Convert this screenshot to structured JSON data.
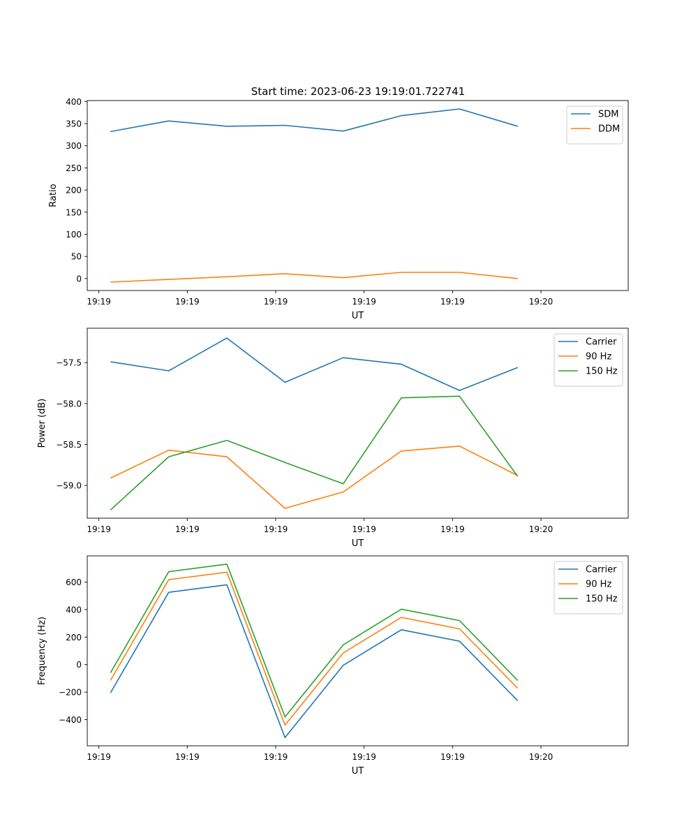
{
  "figure": {
    "title": "Start time: 2023-06-23 19:19:01.722741"
  },
  "chart_data": [
    {
      "type": "line",
      "title": "",
      "xlabel": "UT",
      "ylabel": "Ratio",
      "x": [
        1,
        2,
        3,
        4,
        5,
        6,
        7,
        8
      ],
      "x_ticks": [
        0.8,
        2.32,
        3.84,
        5.36,
        6.88,
        8.4
      ],
      "x_tick_labels": [
        "19:19",
        "19:19",
        "19:19",
        "19:19",
        "19:19",
        "19:20"
      ],
      "xlim": [
        0.6,
        9.9
      ],
      "ylim": [
        -27,
        402
      ],
      "y_ticks": [
        0,
        50,
        100,
        150,
        200,
        250,
        300,
        350,
        400
      ],
      "y_tick_labels": [
        "0",
        "50",
        "100",
        "150",
        "200",
        "250",
        "300",
        "350",
        "400"
      ],
      "grid": false,
      "legend_position": "top-right",
      "series": [
        {
          "name": "SDM",
          "color": "#1f77b4",
          "values": [
            332,
            356,
            344,
            346,
            333,
            368,
            383,
            344
          ]
        },
        {
          "name": "DDM",
          "color": "#ff7f0e",
          "values": [
            -8,
            -2,
            4,
            11,
            2,
            14,
            14,
            0
          ]
        }
      ]
    },
    {
      "type": "line",
      "title": "",
      "xlabel": "UT",
      "ylabel": "Power (dB)",
      "x": [
        1,
        2,
        3,
        4,
        5,
        6,
        7,
        8
      ],
      "x_ticks": [
        0.8,
        2.32,
        3.84,
        5.36,
        6.88,
        8.4
      ],
      "x_tick_labels": [
        "19:19",
        "19:19",
        "19:19",
        "19:19",
        "19:19",
        "19:20"
      ],
      "xlim": [
        0.6,
        9.9
      ],
      "ylim": [
        -59.4,
        -57.08
      ],
      "y_ticks": [
        -57.5,
        -58.0,
        -58.5,
        -59.0
      ],
      "y_tick_labels": [
        "−57.5",
        "−58.0",
        "−58.5",
        "−59.0"
      ],
      "grid": false,
      "legend_position": "top-right",
      "series": [
        {
          "name": "Carrier",
          "color": "#1f77b4",
          "values": [
            -57.49,
            -57.6,
            -57.2,
            -57.74,
            -57.44,
            -57.52,
            -57.84,
            -57.56
          ]
        },
        {
          "name": "90 Hz",
          "color": "#ff7f0e",
          "values": [
            -58.91,
            -58.57,
            -58.65,
            -59.28,
            -59.08,
            -58.58,
            -58.52,
            -58.88
          ]
        },
        {
          "name": "150 Hz",
          "color": "#2ca02c",
          "values": [
            -59.3,
            -58.65,
            -58.45,
            -58.72,
            -58.98,
            -57.93,
            -57.91,
            -58.89
          ]
        }
      ]
    },
    {
      "type": "line",
      "title": "",
      "xlabel": "UT",
      "ylabel": "Frequency (Hz)",
      "x": [
        1,
        2,
        3,
        4,
        5,
        6,
        7,
        8
      ],
      "x_ticks": [
        0.8,
        2.32,
        3.84,
        5.36,
        6.88,
        8.4
      ],
      "x_tick_labels": [
        "19:19",
        "19:19",
        "19:19",
        "19:19",
        "19:19",
        "19:20"
      ],
      "xlim": [
        0.6,
        9.9
      ],
      "ylim": [
        -590,
        790
      ],
      "y_ticks": [
        600,
        400,
        200,
        0,
        -200,
        -400
      ],
      "y_tick_labels": [
        "600",
        "400",
        "200",
        "0",
        "−200",
        "−400"
      ],
      "grid": false,
      "legend_position": "top-right",
      "series": [
        {
          "name": "Carrier",
          "color": "#1f77b4",
          "values": [
            -205,
            525,
            580,
            -530,
            -5,
            253,
            170,
            -262
          ]
        },
        {
          "name": "90 Hz",
          "color": "#ff7f0e",
          "values": [
            -115,
            617,
            672,
            -440,
            85,
            343,
            260,
            -172
          ]
        },
        {
          "name": "150 Hz",
          "color": "#2ca02c",
          "values": [
            -60,
            675,
            730,
            -380,
            143,
            403,
            320,
            -115
          ]
        }
      ]
    }
  ]
}
